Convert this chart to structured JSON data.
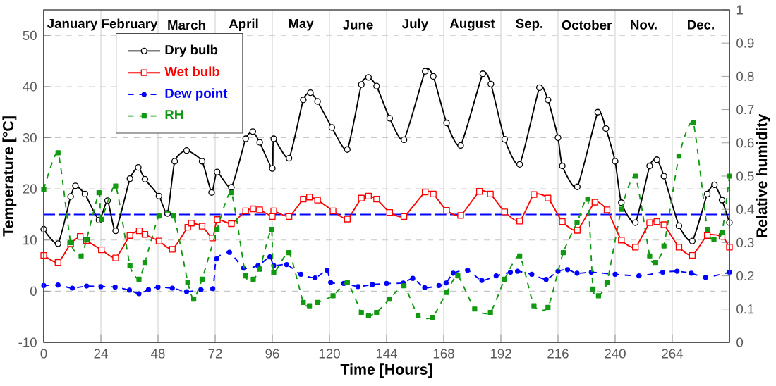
{
  "chart_data": {
    "type": "line",
    "xlabel": "Time [Hours]",
    "ylabel": "Temperature  [°C]",
    "y2label": "Relative humidity",
    "xlim": [
      0,
      288
    ],
    "xticks": [
      0,
      24,
      48,
      72,
      96,
      120,
      144,
      168,
      192,
      216,
      240,
      264
    ],
    "ylim": [
      -10,
      55
    ],
    "yticks": [
      -10,
      0,
      10,
      20,
      30,
      40,
      50
    ],
    "y2lim": [
      0,
      1
    ],
    "y2ticks": [
      0,
      0.1,
      0.2,
      0.3,
      0.4,
      0.5,
      0.6,
      0.7,
      0.8,
      0.9,
      1
    ],
    "grid": true,
    "legend": "top left",
    "series": [
      {
        "name": "Dry bulb",
        "color": "#000000",
        "marker": "circle",
        "line_style": "solid",
        "x": [
          0,
          6,
          11.3,
          13.3,
          17.3,
          23.2,
          26.8,
          30.2,
          36.2,
          39.7,
          42.5,
          48.4,
          52,
          55,
          60,
          66.5,
          70.5,
          72.8,
          78.8,
          84.8,
          87.8,
          90.7,
          96,
          96.6,
          103,
          109,
          112,
          115,
          121,
          127.5,
          133.4,
          136.4,
          139.8,
          145.3,
          151.3,
          160.2,
          163.6,
          169.2,
          175.1,
          184.4,
          187.8,
          193.6,
          199.9,
          208.2,
          211.8,
          216,
          217.8,
          224.1,
          232.7,
          236.1,
          240,
          242.6,
          248.5,
          254.5,
          257.5,
          260.5,
          266.8,
          272.4,
          278.7,
          281.7,
          284.9,
          288
        ],
        "values": [
          12.1,
          9.3,
          18.5,
          20.6,
          19,
          13.9,
          17.7,
          11.8,
          22,
          24.2,
          21.9,
          18.6,
          15.2,
          25.4,
          27.5,
          25.4,
          19.3,
          23.3,
          20.3,
          29.8,
          31.2,
          29.1,
          24,
          29.8,
          26,
          37.4,
          38.8,
          37.1,
          32,
          27.7,
          40.4,
          41.8,
          40.1,
          33.8,
          29.6,
          43,
          42,
          32.9,
          28.5,
          42.5,
          40.5,
          29.7,
          24.8,
          39.8,
          37.4,
          30,
          24.5,
          20.4,
          35,
          31.8,
          25.4,
          17.3,
          13.4,
          24.5,
          25.7,
          22.5,
          12.8,
          9.8,
          19,
          20.8,
          17.8,
          13.4
        ]
      },
      {
        "name": "Wet bulb",
        "color": "#ff0000",
        "marker": "square",
        "line_style": "solid",
        "x": [
          0,
          6,
          11.3,
          15.3,
          17.9,
          24.2,
          30.2,
          36.2,
          40.1,
          42.5,
          48.4,
          54,
          60.5,
          62,
          66.5,
          70.9,
          72.9,
          78.8,
          84.8,
          88,
          90.7,
          96,
          96.6,
          103,
          109,
          111.6,
          115,
          121.5,
          127.5,
          133.4,
          136.4,
          139.8,
          145.3,
          151.3,
          160.2,
          163.6,
          169.2,
          175.1,
          183,
          187.6,
          193.6,
          199.9,
          205.9,
          211.8,
          217.8,
          224.1,
          231.5,
          236.6,
          242.6,
          248.5,
          254.5,
          257.5,
          260.5,
          266.8,
          272.4,
          278.7,
          284.9,
          288
        ],
        "values": [
          7,
          5.6,
          9.3,
          10.7,
          9.9,
          8.1,
          6.5,
          10.9,
          11.8,
          11.1,
          9.8,
          8.2,
          12.5,
          13.3,
          12.7,
          10.4,
          14,
          13.2,
          15.7,
          16.1,
          15.9,
          14.6,
          15.7,
          14.6,
          18,
          18.4,
          17.8,
          15.7,
          14.1,
          18.2,
          18.6,
          18,
          15.4,
          14.6,
          19.4,
          19,
          15.8,
          14.8,
          19.5,
          19,
          15.5,
          13.7,
          18.9,
          18.2,
          13.6,
          11.9,
          17.4,
          15.9,
          10,
          8.6,
          13.4,
          13.6,
          13,
          8.6,
          7,
          10.9,
          10.7,
          8.6
        ]
      },
      {
        "name": "Dew point",
        "color": "#0000ff",
        "marker": "circle",
        "line_style": "dashed",
        "x": [
          0,
          6,
          12,
          18,
          24,
          30,
          36,
          40,
          44,
          48,
          54,
          60,
          66,
          71,
          72.5,
          78,
          84,
          90,
          95,
          96.6,
          102,
          108,
          114,
          119,
          120.5,
          126,
          132,
          138,
          144,
          151,
          155,
          160,
          166,
          169,
          172,
          178,
          184,
          190,
          196,
          199,
          205,
          211,
          216,
          220,
          224,
          230,
          240,
          250,
          260,
          266,
          272,
          278,
          288
        ],
        "values": [
          1.1,
          1.2,
          0.6,
          1,
          0.9,
          0.8,
          0.2,
          -0.5,
          0.3,
          0.8,
          0.6,
          -0.1,
          0.3,
          0.5,
          6.3,
          7.6,
          4.5,
          5,
          6.7,
          5,
          5.2,
          3.3,
          2.6,
          4.1,
          1.7,
          1.5,
          0.9,
          1.3,
          1.5,
          1.6,
          2.5,
          0.7,
          1.1,
          1.6,
          3.5,
          4.1,
          2.1,
          3,
          3.7,
          3.9,
          3.3,
          2.3,
          3.9,
          4.2,
          3.5,
          3.7,
          3.3,
          3,
          3.7,
          3.9,
          3.5,
          2.7,
          3.7
        ]
      },
      {
        "name": "RH",
        "color": "#119911",
        "marker": "square",
        "line_style": "dashed",
        "axis": "y2",
        "x": [
          0,
          6,
          11.3,
          15.7,
          18,
          23.2,
          24.2,
          30.2,
          36.2,
          40,
          42.5,
          48.4,
          54.6,
          60.5,
          63,
          66.5,
          72.8,
          78.8,
          84.8,
          88,
          90.7,
          95.6,
          96.6,
          103,
          109,
          111.6,
          115,
          121.5,
          127.5,
          133.4,
          136.4,
          139.8,
          145.3,
          151.3,
          157.2,
          163.2,
          169.2,
          173.9,
          181,
          187.6,
          193.6,
          199.9,
          205.9,
          211.8,
          218.2,
          224,
          228.5,
          230.7,
          233,
          236.6,
          242.6,
          248.5,
          254.5,
          257,
          260.5,
          266.8,
          272.8,
          278.7,
          281.5,
          284.9,
          288
        ],
        "values": [
          0.46,
          0.57,
          0.3,
          0.26,
          0.31,
          0.45,
          0.37,
          0.47,
          0.23,
          0.19,
          0.24,
          0.38,
          0.38,
          0.18,
          0.13,
          0.19,
          0.34,
          0.45,
          0.2,
          0.19,
          0.22,
          0.34,
          0.21,
          0.27,
          0.12,
          0.11,
          0.12,
          0.14,
          0.18,
          0.09,
          0.08,
          0.09,
          0.13,
          0.17,
          0.08,
          0.075,
          0.15,
          0.2,
          0.1,
          0.09,
          0.19,
          0.26,
          0.11,
          0.105,
          0.27,
          0.36,
          0.43,
          0.16,
          0.14,
          0.18,
          0.4,
          0.5,
          0.26,
          0.24,
          0.29,
          0.56,
          0.66,
          0.34,
          0.31,
          0.33,
          0.5
        ]
      }
    ],
    "ref_lines": [
      {
        "axis": "y",
        "value": 15,
        "color": "#0000ff",
        "line_style": "dashed"
      }
    ],
    "annotations": [
      "January",
      "February",
      "March",
      "April",
      "May",
      "June",
      "July",
      "August",
      "Sep.",
      "October",
      "Nov.",
      "Dec."
    ]
  }
}
